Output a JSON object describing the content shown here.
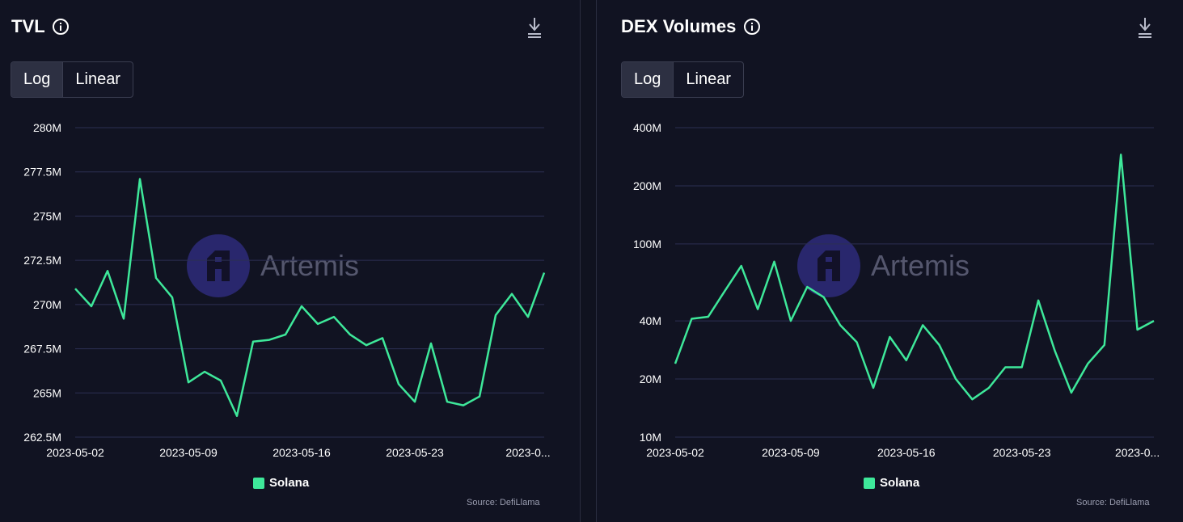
{
  "colors": {
    "background": "#111322",
    "line": "#3ee89a",
    "grid": "#2c2f52",
    "watermark_circle": "#2e2c7a",
    "watermark_text": "#55576e"
  },
  "watermark": {
    "text": "Artemis"
  },
  "chart_data": [
    {
      "type": "line",
      "title": "TVL",
      "scale_toggle": {
        "options": [
          "Log",
          "Linear"
        ],
        "selected": "Log"
      },
      "y_scale": "linear",
      "ylim": [
        262500000,
        280000000
      ],
      "y_ticks": [
        262500000,
        265000000,
        267500000,
        270000000,
        272500000,
        275000000,
        277500000,
        280000000
      ],
      "y_tick_labels": [
        "262.5M",
        "265M",
        "267.5M",
        "270M",
        "272.5M",
        "275M",
        "277.5M",
        "280M"
      ],
      "x_tick_labels": [
        "2023-05-02",
        "2023-05-09",
        "2023-05-16",
        "2023-05-23",
        "2023-0..."
      ],
      "x_tick_dates": [
        "2023-05-02",
        "2023-05-09",
        "2023-05-16",
        "2023-05-23",
        "2023-05-30"
      ],
      "xlim": [
        "2023-05-02",
        "2023-05-31"
      ],
      "grid": true,
      "legend_position": "bottom-center",
      "series": [
        {
          "name": "Solana",
          "color": "#3ee89a",
          "points": [
            [
              "2023-05-02",
              270900000
            ],
            [
              "2023-05-03",
              269900000
            ],
            [
              "2023-05-04",
              271900000
            ],
            [
              "2023-05-05",
              269200000
            ],
            [
              "2023-05-06",
              277100000
            ],
            [
              "2023-05-07",
              271500000
            ],
            [
              "2023-05-08",
              270400000
            ],
            [
              "2023-05-09",
              265600000
            ],
            [
              "2023-05-10",
              266200000
            ],
            [
              "2023-05-11",
              265700000
            ],
            [
              "2023-05-12",
              263700000
            ],
            [
              "2023-05-13",
              267900000
            ],
            [
              "2023-05-14",
              268000000
            ],
            [
              "2023-05-15",
              268300000
            ],
            [
              "2023-05-16",
              269900000
            ],
            [
              "2023-05-17",
              268900000
            ],
            [
              "2023-05-18",
              269300000
            ],
            [
              "2023-05-19",
              268300000
            ],
            [
              "2023-05-20",
              267700000
            ],
            [
              "2023-05-21",
              268100000
            ],
            [
              "2023-05-22",
              265500000
            ],
            [
              "2023-05-23",
              264500000
            ],
            [
              "2023-05-24",
              267800000
            ],
            [
              "2023-05-25",
              264500000
            ],
            [
              "2023-05-26",
              264300000
            ],
            [
              "2023-05-27",
              264800000
            ],
            [
              "2023-05-28",
              269400000
            ],
            [
              "2023-05-29",
              270600000
            ],
            [
              "2023-05-30",
              269300000
            ],
            [
              "2023-05-31",
              271800000
            ]
          ]
        }
      ],
      "source": "Source: DefiLlama"
    },
    {
      "type": "line",
      "title": "DEX Volumes",
      "scale_toggle": {
        "options": [
          "Log",
          "Linear"
        ],
        "selected": "Log"
      },
      "y_scale": "log",
      "ylim": [
        10000000,
        400000000
      ],
      "y_ticks": [
        10000000,
        20000000,
        40000000,
        100000000,
        200000000,
        400000000
      ],
      "y_tick_labels": [
        "10M",
        "20M",
        "40M",
        "100M",
        "200M",
        "400M"
      ],
      "x_tick_labels": [
        "2023-05-02",
        "2023-05-09",
        "2023-05-16",
        "2023-05-23",
        "2023-0..."
      ],
      "x_tick_dates": [
        "2023-05-02",
        "2023-05-09",
        "2023-05-16",
        "2023-05-23",
        "2023-05-30"
      ],
      "xlim": [
        "2023-05-02",
        "2023-05-31"
      ],
      "grid": true,
      "legend_position": "bottom-center",
      "series": [
        {
          "name": "Solana",
          "color": "#3ee89a",
          "points": [
            [
              "2023-05-02",
              24000000
            ],
            [
              "2023-05-03",
              41000000
            ],
            [
              "2023-05-04",
              42000000
            ],
            [
              "2023-05-05",
              57000000
            ],
            [
              "2023-05-06",
              77000000
            ],
            [
              "2023-05-07",
              46000000
            ],
            [
              "2023-05-08",
              81000000
            ],
            [
              "2023-05-09",
              40000000
            ],
            [
              "2023-05-10",
              60000000
            ],
            [
              "2023-05-11",
              53000000
            ],
            [
              "2023-05-12",
              38000000
            ],
            [
              "2023-05-13",
              31000000
            ],
            [
              "2023-05-14",
              18000000
            ],
            [
              "2023-05-15",
              33000000
            ],
            [
              "2023-05-16",
              25000000
            ],
            [
              "2023-05-17",
              38000000
            ],
            [
              "2023-05-18",
              30000000
            ],
            [
              "2023-05-19",
              20000000
            ],
            [
              "2023-05-20",
              15700000
            ],
            [
              "2023-05-21",
              18000000
            ],
            [
              "2023-05-22",
              23000000
            ],
            [
              "2023-05-23",
              23000000
            ],
            [
              "2023-05-24",
              51000000
            ],
            [
              "2023-05-25",
              28000000
            ],
            [
              "2023-05-26",
              17000000
            ],
            [
              "2023-05-27",
              24000000
            ],
            [
              "2023-05-28",
              30000000
            ],
            [
              "2023-05-29",
              290000000
            ],
            [
              "2023-05-30",
              36000000
            ],
            [
              "2023-05-31",
              40000000
            ]
          ]
        }
      ],
      "source": "Source: DefiLlama"
    }
  ]
}
